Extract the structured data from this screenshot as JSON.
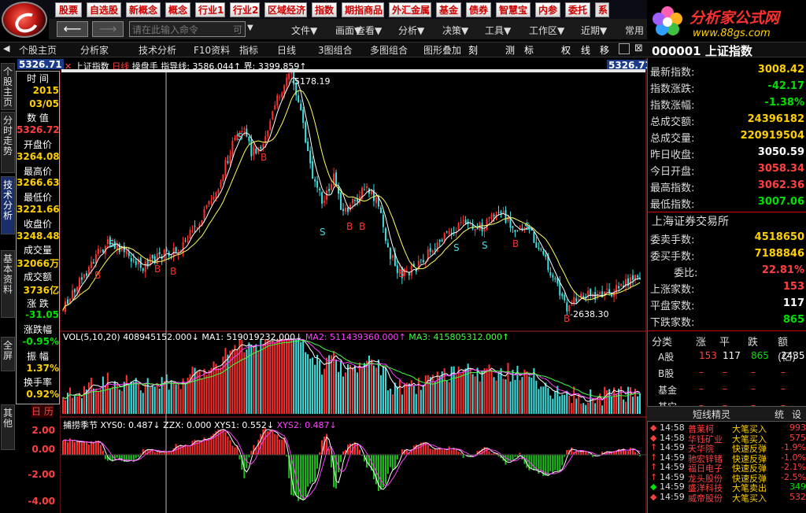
{
  "topnav": {
    "items": [
      "股票",
      "自选股",
      "新概念",
      "概念",
      "行业1",
      "行业2",
      "区域经济",
      "指数",
      "期指商品",
      "外汇金属",
      "基金",
      "债券",
      "智慧宝",
      "内参",
      "委托",
      "系"
    ]
  },
  "brand": {
    "title": "分析家公式网",
    "url": "www.88gs.com"
  },
  "cmdbar": {
    "placeholder": "请在此输入命令",
    "placeholder_suffix": "可",
    "menus": [
      "文件▼",
      "画面▼",
      "查看▼",
      "分析▼",
      "决策▼",
      "工具▼",
      "工作区▼",
      "近期▼",
      "常用"
    ]
  },
  "tabs": [
    "个股主页",
    "分析家",
    "技术分析",
    "F10资料",
    "指标",
    "日线",
    "3图组合",
    "多图组合",
    "图形叠加",
    "刻",
    "测",
    "标",
    "权",
    "线",
    "移"
  ],
  "left_vtabs": [
    "个股主页",
    "分时走势",
    "技术分析",
    "基本资料",
    "全屏",
    "其他"
  ],
  "chart_header": {
    "price_label_top": "5326.71",
    "index_name": "上证指数",
    "period": "日线",
    "indicator": "操盘手",
    "guide_line": "指导线: 3586.044↑",
    "bound": "界: 3399.859↑",
    "price_label_right": "5326.71",
    "high_label": "5178.19",
    "low_label": "2638.30"
  },
  "vol_header": {
    "name": "VOL(5,10,20)",
    "vol": "408945152.000↓",
    "ma1": "MA1: 519019232.000↓",
    "ma2": "MA2: 511439360.000↑",
    "ma3": "MA3: 415805312.000↑"
  },
  "ind_header": {
    "name": "捕捞季节",
    "xys0": "XYS0: 0.487↓",
    "zzx": "ZZX: 0.000",
    "xys1": "XYS1: 0.552↓",
    "xys2": "XYS2: 0.487↓"
  },
  "ind_axis": [
    "2.00",
    "0.00",
    "-2.00",
    "-4.00"
  ],
  "info_panel": {
    "time_label": "时 间",
    "year": "2015",
    "date": "03/05",
    "value_label": "数 值",
    "value": "5326.72",
    "open_label": "开盘价",
    "open": "3264.08",
    "high_label": "最高价",
    "high": "3266.63",
    "low_label": "最低价",
    "low": "3221.66",
    "close_label": "收盘价",
    "close": "3248.48",
    "volume_label": "成交量",
    "volume": "32066万",
    "amount_label": "成交额",
    "amount": "3736亿",
    "change_label": "涨 跌",
    "change": "-31.05",
    "change_pct_label": "涨跌幅",
    "change_pct": "-0.95%",
    "amplitude_label": "振 幅",
    "amplitude": "1.37%",
    "turnover_label": "换手率",
    "turnover": "0.92%",
    "footer": "日 历"
  },
  "quote": {
    "code": "000001",
    "name": "上证指数",
    "rows": [
      {
        "label": "最新指数:",
        "value": "3008.42",
        "color": "#ffd000"
      },
      {
        "label": "指数涨跌:",
        "value": "-42.17",
        "color": "#00e000"
      },
      {
        "label": "指数涨幅:",
        "value": "-1.38%",
        "color": "#00e000"
      },
      {
        "label": "总成交额:",
        "value": "24396182",
        "color": "#ffd000"
      },
      {
        "label": "总成交量:",
        "value": "220919504",
        "color": "#ffd000"
      },
      {
        "label": "昨日收盘:",
        "value": "3050.59",
        "color": "#ffffff"
      },
      {
        "label": "今日开盘:",
        "value": "3058.34",
        "color": "#ff4040"
      },
      {
        "label": "最高指数:",
        "value": "3062.36",
        "color": "#ff4040"
      },
      {
        "label": "最低指数:",
        "value": "3007.06",
        "color": "#00e000"
      }
    ],
    "exchange": "上海证券交易所",
    "exrows": [
      {
        "label": "委卖手数:",
        "value": "4518650",
        "color": "#ffd000"
      },
      {
        "label": "委买手数:",
        "value": "7188846",
        "color": "#ffd000"
      },
      {
        "label": "委比:",
        "value": "22.81%",
        "color": "#ff4040"
      },
      {
        "label": "上涨家数:",
        "value": "153",
        "color": "#ff4040"
      },
      {
        "label": "平盘家数:",
        "value": "117",
        "color": "#ffffff"
      },
      {
        "label": "下跌家数:",
        "value": "865",
        "color": "#00e000"
      }
    ],
    "table_header": [
      "分类",
      "涨",
      "平",
      "跌",
      "额(亿)"
    ],
    "table_rows": [
      {
        "cat": "A股",
        "up": "153",
        "flat": "117",
        "down": "865",
        "amt": "2435"
      },
      {
        "cat": "B股",
        "up": "–",
        "flat": "–",
        "down": "–",
        "amt": "–"
      },
      {
        "cat": "基金",
        "up": "–",
        "flat": "–",
        "down": "–",
        "amt": "–"
      },
      {
        "cat": "其它",
        "up": "–",
        "flat": "–",
        "down": "–",
        "amt": "–"
      }
    ]
  },
  "news": {
    "title": "短线精灵",
    "btn1": "统",
    "btn2": "设",
    "items": [
      {
        "mark": "◆",
        "time": "14:58",
        "name": "普莱柯",
        "type": "大笔买入",
        "val": "993",
        "c": "#ff4040"
      },
      {
        "mark": "◆",
        "time": "14:58",
        "name": "华钰矿业",
        "type": "大笔买入",
        "val": "575",
        "c": "#ff4040"
      },
      {
        "mark": "↑",
        "time": "14:59",
        "name": "天华院",
        "type": "快速反弹",
        "val": "-1.9%",
        "c": "#ff4040"
      },
      {
        "mark": "↑",
        "time": "14:59",
        "name": "驰宏锌锗",
        "type": "快速反弹",
        "val": "-1.0%",
        "c": "#ff4040"
      },
      {
        "mark": "↑",
        "time": "14:59",
        "name": "福日电子",
        "type": "快速反弹",
        "val": "-2.1%",
        "c": "#ff4040"
      },
      {
        "mark": "↑",
        "time": "14:59",
        "name": "龙头股份",
        "type": "快速反弹",
        "val": "-2.5%",
        "c": "#ff4040"
      },
      {
        "mark": "◆",
        "time": "14:59",
        "name": "盛洋科技",
        "type": "大笔卖出",
        "val": "349",
        "c": "#00e000"
      },
      {
        "mark": "◆",
        "time": "14:59",
        "name": "威帝股份",
        "type": "大笔买入",
        "val": "532",
        "c": "#ff4040"
      }
    ]
  },
  "colors": {
    "up": "#ff3030",
    "down": "#40e0e0",
    "ma_white": "#ffffff",
    "ma_yellow": "#ffff60",
    "vol_ma2": "#ff40ff",
    "green": "#00e000"
  },
  "chart_data": {
    "type": "candlestick",
    "markers": [
      {
        "label": "S",
        "pos": "early"
      },
      {
        "label": "B",
        "pos": "early"
      },
      {
        "label": "S",
        "pos": "mid"
      },
      {
        "label": "B",
        "pos": "mid"
      },
      {
        "label": "B",
        "pos": "mid"
      },
      {
        "label": "B",
        "pos": "late"
      }
    ],
    "annotated_high": 5178.19,
    "annotated_low": 2638.3
  }
}
